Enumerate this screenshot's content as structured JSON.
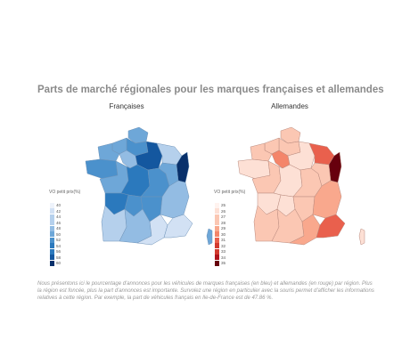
{
  "title": "Parts de marché régionales pour les marques françaises et allemandes",
  "caption": "Nous présentons ici le pourcentage d'annonces pour les véhicules de marques françaises (en bleu) et allemandes (en rouge) par région. Plus la région est foncée, plus la part d'annonces est importante. Survolez une région en particulier avec la souris permet d'afficher les informations relatives à cette région. Par exemple, la part de véhicules français en Ile-de-France est de 47.86 %.",
  "colors": {
    "french_scale": [
      "#eef3fb",
      "#d2e1f4",
      "#b5d0ec",
      "#93bce3",
      "#6ea7d8",
      "#4b91cc",
      "#2b79bd",
      "#14579f",
      "#08306b"
    ],
    "german_scale": [
      "#fff3ef",
      "#fde0d5",
      "#fbc7b3",
      "#f9a88d",
      "#f4856a",
      "#e9604d",
      "#d23a2f",
      "#b0131c",
      "#67000d"
    ]
  },
  "chart_data": [
    {
      "type": "heatmap",
      "subtype": "choropleth",
      "title": "Françaises",
      "legend_title": "VO petit prix(%)",
      "legend_ticks": [
        "40",
        "42",
        "44",
        "46",
        "48",
        "50",
        "52",
        "54",
        "56",
        "58",
        "60"
      ],
      "regions": [
        {
          "name": "Nord-Pas-de-Calais",
          "value": 50
        },
        {
          "name": "Picardie",
          "value": 52
        },
        {
          "name": "Haute-Normandie",
          "value": 51
        },
        {
          "name": "Basse-Normandie",
          "value": 50
        },
        {
          "name": "Île-de-France",
          "value": 47.86
        },
        {
          "name": "Champagne-Ardenne",
          "value": 58
        },
        {
          "name": "Lorraine",
          "value": 44
        },
        {
          "name": "Alsace",
          "value": 60
        },
        {
          "name": "Bretagne",
          "value": 52
        },
        {
          "name": "Pays de la Loire",
          "value": 50
        },
        {
          "name": "Centre",
          "value": 54
        },
        {
          "name": "Bourgogne",
          "value": 53
        },
        {
          "name": "Franche-Comté",
          "value": 49
        },
        {
          "name": "Poitou-Charentes",
          "value": 55
        },
        {
          "name": "Limousin",
          "value": 52
        },
        {
          "name": "Auvergne",
          "value": 53
        },
        {
          "name": "Rhône-Alpes",
          "value": 47
        },
        {
          "name": "Aquitaine",
          "value": 45
        },
        {
          "name": "Midi-Pyrénées",
          "value": 48
        },
        {
          "name": "Languedoc-Roussillon",
          "value": 43
        },
        {
          "name": "Provence-Alpes-Côte d'Azur",
          "value": 42
        },
        {
          "name": "Corse",
          "value": 51
        }
      ]
    },
    {
      "type": "heatmap",
      "subtype": "choropleth",
      "title": "Allemandes",
      "legend_title": "VO petit prix(%)",
      "legend_ticks": [
        "25",
        "26",
        "27",
        "28",
        "29",
        "30",
        "31",
        "32",
        "33",
        "34",
        "35"
      ],
      "regions": [
        {
          "name": "Nord-Pas-de-Calais",
          "value": 28
        },
        {
          "name": "Picardie",
          "value": 27
        },
        {
          "name": "Haute-Normandie",
          "value": 28
        },
        {
          "name": "Basse-Normandie",
          "value": 27
        },
        {
          "name": "Île-de-France",
          "value": 30
        },
        {
          "name": "Champagne-Ardenne",
          "value": 26
        },
        {
          "name": "Lorraine",
          "value": 31
        },
        {
          "name": "Alsace",
          "value": 35
        },
        {
          "name": "Bretagne",
          "value": 26
        },
        {
          "name": "Pays de la Loire",
          "value": 27
        },
        {
          "name": "Centre",
          "value": 26
        },
        {
          "name": "Bourgogne",
          "value": 27
        },
        {
          "name": "Franche-Comté",
          "value": 28
        },
        {
          "name": "Poitou-Charentes",
          "value": 26
        },
        {
          "name": "Limousin",
          "value": 26
        },
        {
          "name": "Auvergne",
          "value": 27
        },
        {
          "name": "Rhône-Alpes",
          "value": 29
        },
        {
          "name": "Aquitaine",
          "value": 28
        },
        {
          "name": "Midi-Pyrénées",
          "value": 27
        },
        {
          "name": "Languedoc-Roussillon",
          "value": 29
        },
        {
          "name": "Provence-Alpes-Côte d'Azur",
          "value": 31
        },
        {
          "name": "Corse",
          "value": 26
        }
      ]
    }
  ]
}
